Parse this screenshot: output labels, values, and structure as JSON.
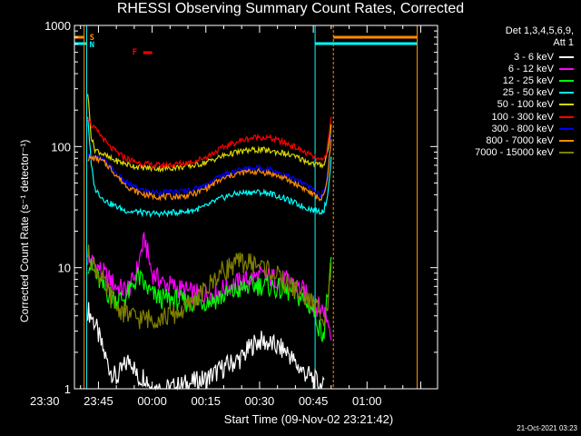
{
  "header": {
    "title": "RHESSI Observing Summary Count Rates, Corrected",
    "stamp": "21-Oct-2021 03:23"
  },
  "legend": {
    "heading": [
      "Det 1,3,4,5,6,9,",
      "Att 1"
    ],
    "items": [
      {
        "label": "3 - 6 keV",
        "color": "#ffffff"
      },
      {
        "label": "6 - 12 keV",
        "color": "#ff00ff"
      },
      {
        "label": "12 - 25 keV",
        "color": "#00ff00"
      },
      {
        "label": "25 - 50 keV",
        "color": "#00ffff"
      },
      {
        "label": "50 - 100 keV",
        "color": "#d8d800"
      },
      {
        "label": "100 - 300 keV",
        "color": "#ff0000"
      },
      {
        "label": "300 - 800 keV",
        "color": "#0000ff"
      },
      {
        "label": "800 - 7000 keV",
        "color": "#ff8c00"
      },
      {
        "label": "7000 - 15000 keV",
        "color": "#808000"
      }
    ]
  },
  "flags": [
    {
      "label": "S",
      "color": "#ff8c00"
    },
    {
      "label": "N",
      "color": "#00ffff"
    },
    {
      "label": "F",
      "color": "#ff0000"
    }
  ],
  "chart_data": {
    "type": "line",
    "title": "RHESSI Observing Summary Count Rates, Corrected",
    "xlabel": "Start Time (09-Nov-02 23:21:42)",
    "ylabel": "Corrected Count Rate (s⁻¹ detector⁻¹)",
    "y_scale": "log",
    "ylim": [
      1,
      1000
    ],
    "xlim_minutes": [
      -21.7,
      79.7
    ],
    "y_ticks": [
      "1",
      "10",
      "100",
      "1000"
    ],
    "x_ticks": [
      "23:30",
      "23:45",
      "00:00",
      "00:15",
      "00:30",
      "00:45",
      "01:00"
    ],
    "x_tick_minutes": [
      -30,
      -15,
      0,
      15,
      30,
      45,
      60
    ],
    "night_intervals_minutes": [
      [
        -38.5,
        -18.3
      ],
      [
        45.5,
        74
      ]
    ],
    "saa_intervals_minutes": [
      [
        -38.5,
        -19
      ],
      [
        50.6,
        74
      ]
    ],
    "flare_interval_minutes": [
      -2.5,
      0
    ],
    "series": [
      {
        "name": "3 - 6 keV",
        "color": "#ffffff",
        "x": [
          -18,
          -16,
          -14,
          -12,
          -10,
          -8,
          -6,
          -4,
          -2,
          0,
          5,
          10,
          15,
          20,
          25,
          28,
          30,
          32,
          35,
          38,
          40,
          42,
          45,
          48
        ],
        "y": [
          4.5,
          3.5,
          2.2,
          1.5,
          1.2,
          1.5,
          1.8,
          1.2,
          1.3,
          1.0,
          1.0,
          1.1,
          1.2,
          1.5,
          1.8,
          2.3,
          2.5,
          2.4,
          2.2,
          2.0,
          1.6,
          1.4,
          1.2,
          1.0
        ]
      },
      {
        "name": "6 - 12 keV",
        "color": "#ff00ff",
        "x": [
          -18,
          -15,
          -12,
          -10,
          -8,
          -6,
          -4,
          -3,
          -2,
          -1,
          0,
          3,
          6,
          9,
          12,
          15,
          18,
          21,
          24,
          27,
          30,
          33,
          36,
          39,
          42,
          45,
          48,
          50
        ],
        "y": [
          12,
          10,
          8,
          7,
          6.5,
          7,
          10,
          14,
          17,
          12,
          9,
          7.5,
          7,
          6.5,
          6,
          6,
          6.2,
          7,
          7.5,
          8,
          8.5,
          8.3,
          8,
          7.5,
          6.5,
          5,
          4.5,
          3
        ]
      },
      {
        "name": "12 - 25 keV",
        "color": "#00ff00",
        "x": [
          -18,
          -16,
          -14,
          -12,
          -10,
          -8,
          -6,
          -4,
          -2,
          0,
          3,
          6,
          9,
          12,
          15,
          18,
          21,
          24,
          27,
          30,
          33,
          36,
          39,
          42,
          45,
          47,
          48,
          49,
          50
        ],
        "y": [
          11,
          9,
          7,
          6,
          5.5,
          5.5,
          6.5,
          8.5,
          7,
          6,
          5.5,
          5.5,
          5.2,
          5.2,
          5.3,
          5.5,
          6,
          6.5,
          7,
          7.2,
          7,
          6.5,
          6.2,
          5.5,
          4.5,
          3,
          3,
          6,
          10
        ]
      },
      {
        "name": "25 - 50 keV",
        "color": "#00ffff",
        "x": [
          -18,
          -17,
          -16,
          -14,
          -12,
          -10,
          -8,
          -6,
          -4,
          -2,
          0,
          3,
          6,
          9,
          12,
          15,
          18,
          21,
          24,
          27,
          30,
          33,
          36,
          39,
          42,
          45,
          47,
          48,
          49,
          50
        ],
        "y": [
          180,
          70,
          45,
          38,
          34,
          32,
          30,
          29,
          29,
          28,
          28,
          28,
          28.5,
          29,
          30,
          32,
          36,
          39,
          41,
          42,
          42,
          41,
          38,
          35,
          32,
          30,
          29,
          30,
          40,
          80
        ]
      },
      {
        "name": "50 - 100 keV",
        "color": "#d8d800",
        "x": [
          -18,
          -17,
          -16,
          -14,
          -12,
          -10,
          -8,
          -6,
          -4,
          -2,
          0,
          3,
          6,
          9,
          12,
          15,
          18,
          21,
          24,
          27,
          30,
          33,
          36,
          39,
          42,
          45,
          47,
          48,
          49,
          50
        ],
        "y": [
          280,
          120,
          95,
          88,
          80,
          76,
          73,
          70,
          68,
          67,
          66,
          66,
          67,
          68,
          70,
          74,
          80,
          86,
          90,
          93,
          94,
          92,
          89,
          84,
          78,
          72,
          70,
          72,
          90,
          150
        ]
      },
      {
        "name": "100 - 300 keV",
        "color": "#ff0000",
        "x": [
          -18,
          -17,
          -16,
          -14,
          -12,
          -10,
          -8,
          -6,
          -4,
          -2,
          0,
          3,
          6,
          9,
          12,
          15,
          18,
          21,
          24,
          27,
          30,
          33,
          36,
          39,
          42,
          45,
          47,
          48,
          49,
          50
        ],
        "y": [
          180,
          150,
          140,
          120,
          100,
          90,
          82,
          77,
          74,
          72,
          70,
          70,
          71,
          73,
          76,
          82,
          92,
          102,
          110,
          117,
          120,
          117,
          110,
          102,
          92,
          82,
          76,
          78,
          100,
          175
        ]
      },
      {
        "name": "300 - 800 keV",
        "color": "#0000ff",
        "x": [
          -18,
          -17,
          -16,
          -14,
          -12,
          -10,
          -8,
          -6,
          -4,
          -2,
          0,
          3,
          6,
          9,
          12,
          15,
          18,
          21,
          24,
          27,
          30,
          33,
          36,
          39,
          42,
          45,
          47,
          48,
          49,
          50
        ],
        "y": [
          83,
          82,
          82,
          78,
          70,
          60,
          52,
          48,
          45,
          43,
          42,
          42,
          42,
          43,
          45,
          48,
          55,
          60,
          64,
          66,
          67,
          65,
          60,
          55,
          50,
          44,
          40,
          42,
          60,
          130
        ]
      },
      {
        "name": "800 - 7000 keV",
        "color": "#ff8c00",
        "x": [
          -18,
          -17,
          -16,
          -14,
          -12,
          -10,
          -8,
          -6,
          -4,
          -2,
          0,
          3,
          6,
          9,
          12,
          15,
          18,
          21,
          24,
          27,
          30,
          33,
          36,
          39,
          42,
          45,
          47,
          48,
          49,
          50
        ],
        "y": [
          80,
          80,
          80,
          76,
          68,
          58,
          50,
          45,
          42,
          40,
          39,
          38.5,
          38.5,
          39,
          41,
          45,
          51,
          56,
          60,
          62,
          62,
          60,
          56,
          51,
          46,
          40,
          37,
          39,
          55,
          120
        ]
      },
      {
        "name": "7000 - 15000 keV",
        "color": "#808000",
        "x": [
          -18,
          -17,
          -16,
          -14,
          -12,
          -10,
          -8,
          -6,
          -4,
          -2,
          0,
          3,
          6,
          9,
          12,
          15,
          18,
          21,
          24,
          27,
          30,
          33,
          36,
          39,
          42,
          45,
          47,
          48,
          49,
          50
        ],
        "y": [
          13,
          12,
          10,
          8,
          6,
          4.8,
          4.3,
          4,
          3.8,
          3.8,
          3.8,
          3.9,
          4.1,
          4.5,
          5.5,
          6.5,
          8.5,
          10,
          11,
          11,
          10.5,
          9.5,
          8,
          7,
          6,
          5,
          4.5,
          4,
          5,
          10
        ]
      }
    ]
  }
}
